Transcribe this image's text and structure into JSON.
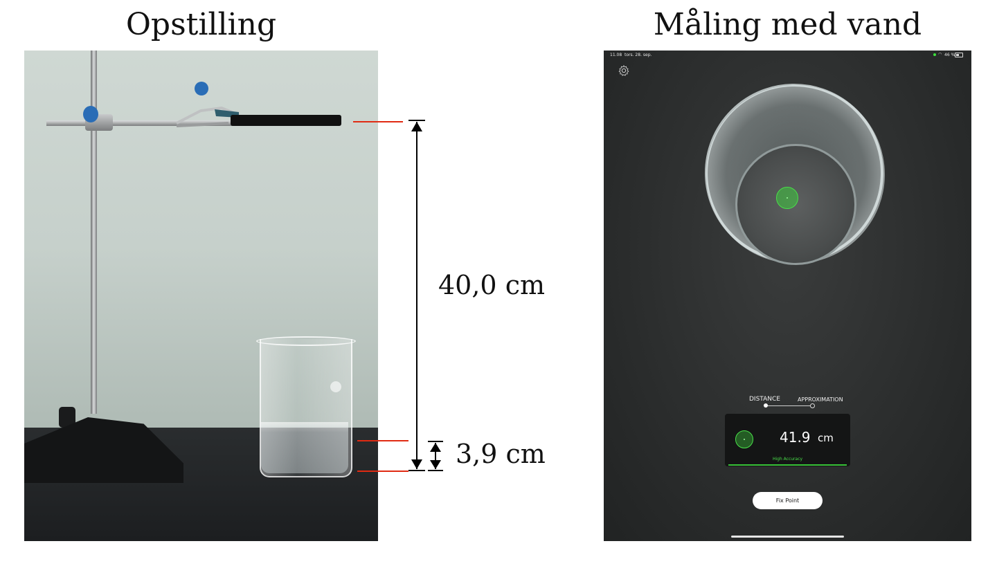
{
  "titles": {
    "left": "Opstilling",
    "right": "Måling med vand"
  },
  "annotations": {
    "total_distance": "40,0 cm",
    "water_height": "3,9 cm",
    "line_color": "#e02a12"
  },
  "app": {
    "status_bar": {
      "time": "11.08",
      "date": "tors. 28. sep.",
      "battery": "46 %"
    },
    "icons": {
      "settings": "gear-icon",
      "target": "target-reticle-icon",
      "wifi": "wifi-icon",
      "battery": "battery-icon"
    },
    "modes": {
      "distance": "DISTANCE",
      "approximation": "APPROXIMATION",
      "selected": "DISTANCE"
    },
    "readout": {
      "value": "41.9",
      "unit": "cm",
      "accuracy": "High Accuracy",
      "accent_color": "#37c237"
    },
    "fix_point_label": "Fix Point"
  }
}
